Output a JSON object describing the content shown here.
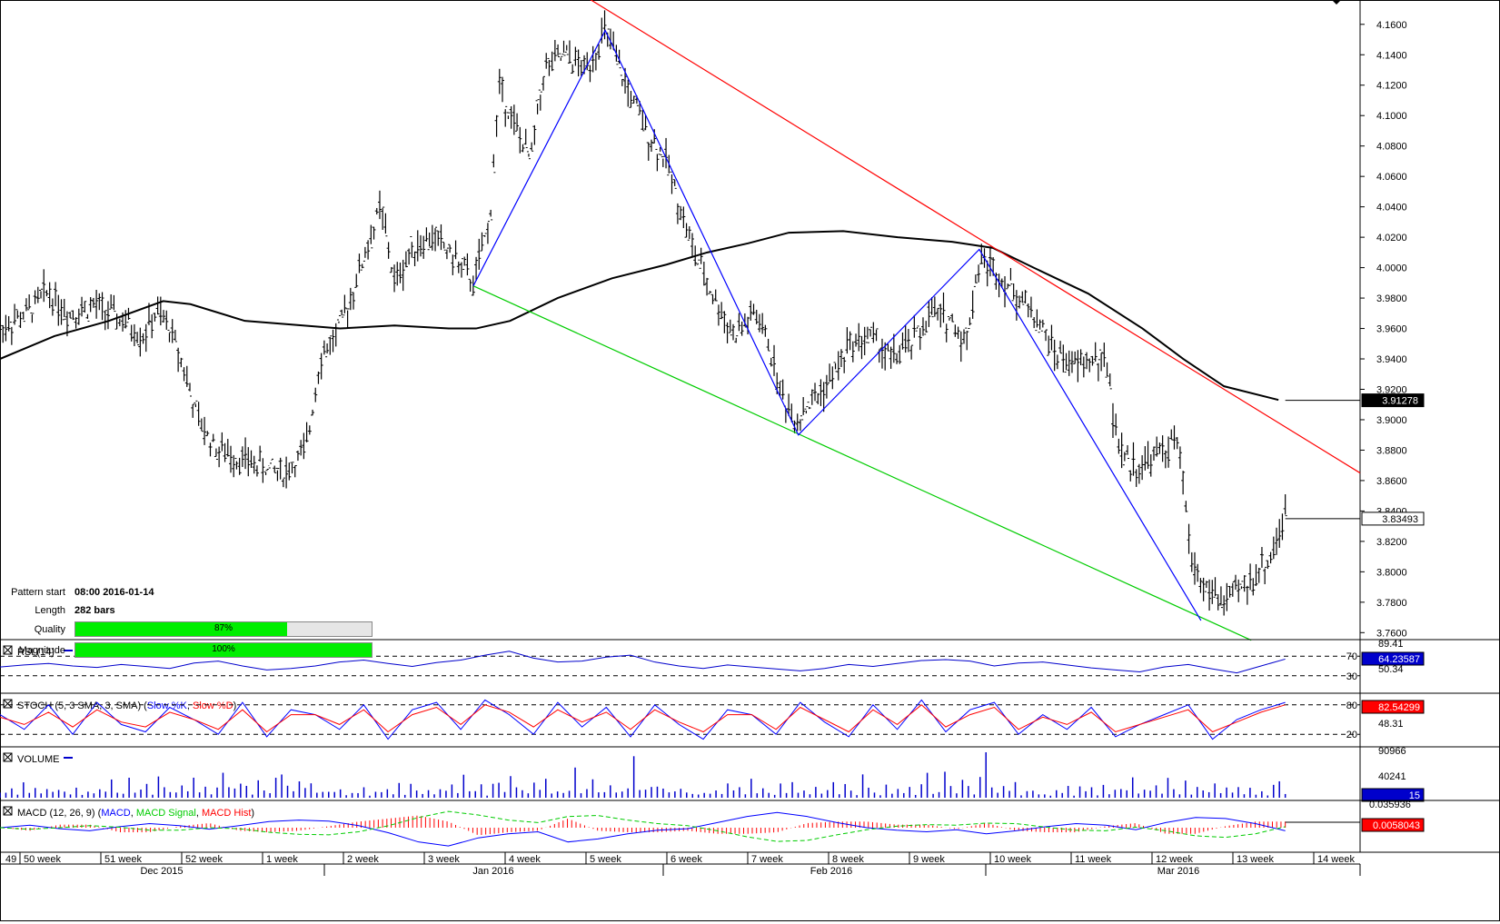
{
  "pattern_info": {
    "start_label": "Pattern start",
    "start_value": "08:00 2016-01-14",
    "length_label": "Length",
    "length_value": "282 bars",
    "quality_label": "Quality",
    "quality_pct": 87,
    "quality_text": "87%",
    "magnitude_label": "Magnitude",
    "magnitude_pct": 100,
    "magnitude_text": "100%"
  },
  "colors": {
    "resistance": "#ff0000",
    "support": "#00cc00",
    "zigzag": "#0000ff",
    "moving_average": "#000000",
    "rsi": "#0000cc",
    "stoch_k": "#0000ff",
    "stoch_d": "#ff0000",
    "volume": "#0000cc",
    "macd": "#0000ff",
    "macd_signal": "#00cc00",
    "macd_hist": "#ff0000",
    "price_bars": "#000000"
  },
  "chart_data": {
    "type": "line",
    "instrument_series": "OHLC price bars",
    "x_weeks": [
      "49",
      "50 week",
      "51 week",
      "52 week",
      "1 week",
      "2 week",
      "3 week",
      "4 week",
      "5 week",
      "6 week",
      "7 week",
      "8 week",
      "9 week",
      "10 week",
      "11 week",
      "12 week",
      "13 week",
      "14 week"
    ],
    "x_months": [
      "Dec 2015",
      "Jan 2016",
      "Feb 2016",
      "Mar 2016"
    ],
    "y_ticks": [
      "4.1600",
      "4.1400",
      "4.1200",
      "4.1000",
      "4.0800",
      "4.0600",
      "4.0400",
      "4.0200",
      "4.0000",
      "3.9800",
      "3.9600",
      "3.9400",
      "3.9200",
      "3.9000",
      "3.8800",
      "3.8600",
      "3.8400",
      "3.8200",
      "3.8000",
      "3.7800",
      "3.7600"
    ],
    "ylim": [
      3.756,
      4.176
    ],
    "price_tag_ma": "3.91278",
    "price_tag_last": "3.83493",
    "price_anchors": [
      [
        0,
        3.96
      ],
      [
        0.02,
        3.97
      ],
      [
        0.035,
        3.985
      ],
      [
        0.05,
        3.97
      ],
      [
        0.07,
        3.975
      ],
      [
        0.09,
        3.965
      ],
      [
        0.105,
        3.955
      ],
      [
        0.115,
        3.97
      ],
      [
        0.125,
        3.96
      ],
      [
        0.135,
        3.935
      ],
      [
        0.145,
        3.9
      ],
      [
        0.16,
        3.88
      ],
      [
        0.175,
        3.875
      ],
      [
        0.19,
        3.87
      ],
      [
        0.21,
        3.865
      ],
      [
        0.225,
        3.88
      ],
      [
        0.235,
        3.94
      ],
      [
        0.25,
        3.96
      ],
      [
        0.265,
        4.0
      ],
      [
        0.28,
        4.04
      ],
      [
        0.29,
        3.99
      ],
      [
        0.305,
        4.015
      ],
      [
        0.32,
        4.02
      ],
      [
        0.335,
        4.005
      ],
      [
        0.348,
        3.99
      ],
      [
        0.36,
        4.03
      ],
      [
        0.367,
        4.12
      ],
      [
        0.38,
        4.09
      ],
      [
        0.39,
        4.07
      ],
      [
        0.4,
        4.13
      ],
      [
        0.415,
        4.14
      ],
      [
        0.43,
        4.13
      ],
      [
        0.445,
        4.155
      ],
      [
        0.46,
        4.12
      ],
      [
        0.475,
        4.09
      ],
      [
        0.49,
        4.07
      ],
      [
        0.51,
        4.01
      ],
      [
        0.525,
        3.98
      ],
      [
        0.54,
        3.955
      ],
      [
        0.555,
        3.97
      ],
      [
        0.565,
        3.95
      ],
      [
        0.575,
        3.915
      ],
      [
        0.585,
        3.9
      ],
      [
        0.595,
        3.91
      ],
      [
        0.61,
        3.925
      ],
      [
        0.625,
        3.95
      ],
      [
        0.64,
        3.955
      ],
      [
        0.655,
        3.94
      ],
      [
        0.67,
        3.95
      ],
      [
        0.685,
        3.97
      ],
      [
        0.7,
        3.965
      ],
      [
        0.71,
        3.95
      ],
      [
        0.72,
        4.005
      ],
      [
        0.73,
        4.0
      ],
      [
        0.745,
        3.985
      ],
      [
        0.76,
        3.97
      ],
      [
        0.775,
        3.945
      ],
      [
        0.79,
        3.935
      ],
      [
        0.805,
        3.94
      ],
      [
        0.815,
        3.935
      ],
      [
        0.82,
        3.89
      ],
      [
        0.83,
        3.87
      ],
      [
        0.84,
        3.87
      ],
      [
        0.855,
        3.88
      ],
      [
        0.865,
        3.885
      ],
      [
        0.87,
        3.86
      ],
      [
        0.875,
        3.81
      ],
      [
        0.885,
        3.79
      ],
      [
        0.9,
        3.78
      ],
      [
        0.915,
        3.79
      ],
      [
        0.925,
        3.8
      ],
      [
        0.935,
        3.81
      ],
      [
        0.94,
        3.825
      ],
      [
        0.945,
        3.835
      ]
    ],
    "moving_average": {
      "name": "",
      "points": [
        [
          0,
          3.94
        ],
        [
          0.04,
          3.955
        ],
        [
          0.08,
          3.965
        ],
        [
          0.12,
          3.978
        ],
        [
          0.14,
          3.976
        ],
        [
          0.18,
          3.965
        ],
        [
          0.25,
          3.96
        ],
        [
          0.29,
          3.962
        ],
        [
          0.33,
          3.96
        ],
        [
          0.35,
          3.96
        ],
        [
          0.375,
          3.965
        ],
        [
          0.41,
          3.98
        ],
        [
          0.45,
          3.993
        ],
        [
          0.49,
          4.002
        ],
        [
          0.52,
          4.01
        ],
        [
          0.55,
          4.016
        ],
        [
          0.58,
          4.023
        ],
        [
          0.62,
          4.024
        ],
        [
          0.66,
          4.02
        ],
        [
          0.7,
          4.017
        ],
        [
          0.73,
          4.013
        ],
        [
          0.76,
          4.0
        ],
        [
          0.8,
          3.983
        ],
        [
          0.84,
          3.96
        ],
        [
          0.87,
          3.94
        ],
        [
          0.9,
          3.922
        ],
        [
          0.94,
          3.913
        ]
      ]
    },
    "zigzag": [
      [
        0.348,
        3.988
      ],
      [
        0.445,
        4.156
      ],
      [
        0.587,
        3.89
      ],
      [
        0.72,
        4.012
      ],
      [
        0.883,
        3.768
      ]
    ],
    "resistance_line": [
      [
        0.4,
        4.195
      ],
      [
        1.0,
        3.865
      ]
    ],
    "support_line": [
      [
        0.348,
        3.988
      ],
      [
        0.92,
        3.755
      ]
    ],
    "indicators": {
      "rsi": {
        "label": "RSI (14)",
        "levels": [
          70,
          30
        ],
        "ylim": [
          0,
          100
        ],
        "scale_labels": [
          "89.41",
          "50.34"
        ],
        "last_value": "64.23587",
        "values": [
          48,
          52,
          55,
          50,
          47,
          53,
          49,
          45,
          56,
          60,
          50,
          42,
          45,
          50,
          58,
          62,
          55,
          49,
          57,
          62,
          72,
          80,
          66,
          58,
          60,
          68,
          72,
          58,
          50,
          45,
          52,
          48,
          44,
          40,
          45,
          53,
          49,
          55,
          61,
          63,
          60,
          50,
          56,
          58,
          52,
          46,
          42,
          38,
          48,
          53,
          44,
          36,
          50,
          64
        ]
      },
      "stoch": {
        "label": "STOCH (5, 3 SMA, 3, SMA)",
        "k_name": "Slow %K",
        "d_name": "Slow %D",
        "levels": [
          80,
          20
        ],
        "ylim": [
          0,
          100
        ],
        "scale_labels": [
          "48.31"
        ],
        "last_value": "82.54299",
        "k": [
          60,
          30,
          80,
          20,
          85,
          40,
          25,
          75,
          50,
          20,
          85,
          15,
          70,
          60,
          30,
          80,
          10,
          70,
          85,
          30,
          90,
          60,
          20,
          85,
          35,
          75,
          15,
          80,
          40,
          10,
          70,
          60,
          20,
          85,
          45,
          15,
          80,
          30,
          90,
          25,
          70,
          85,
          20,
          60,
          30,
          75,
          15,
          40,
          60,
          80,
          10,
          50,
          70,
          85
        ],
        "d": [
          55,
          40,
          65,
          35,
          70,
          45,
          35,
          65,
          50,
          30,
          70,
          25,
          60,
          60,
          40,
          70,
          25,
          60,
          75,
          40,
          80,
          65,
          35,
          70,
          45,
          65,
          30,
          70,
          45,
          25,
          60,
          60,
          30,
          75,
          50,
          25,
          70,
          40,
          80,
          35,
          60,
          75,
          30,
          55,
          40,
          65,
          25,
          40,
          55,
          70,
          25,
          45,
          65,
          80
        ]
      },
      "volume": {
        "label": "VOLUME",
        "scale_labels": [
          "90966",
          "40241"
        ],
        "last_value": "15",
        "values": [
          18,
          12,
          25,
          10,
          30,
          15,
          22,
          8,
          35,
          12,
          28,
          20,
          14,
          40,
          10,
          32,
          18,
          26,
          12,
          45,
          22,
          16,
          38,
          10,
          28,
          35,
          14,
          50,
          20,
          24,
          12,
          36,
          18,
          42,
          15,
          30,
          10,
          28,
          60,
          20,
          18,
          48,
          25,
          14,
          34,
          22,
          12,
          40,
          95,
          30,
          16,
          44,
          22,
          38,
          10,
          20,
          28,
          14,
          18,
          6
        ]
      },
      "macd": {
        "label": "MACD (12, 26, 9)",
        "names": [
          "MACD",
          "MACD Signal",
          "MACD Hist"
        ],
        "scale_labels": [
          "0.035936"
        ],
        "last_value": "0.0058043",
        "macd": [
          0,
          -0.005,
          0.002,
          0.006,
          -0.002,
          -0.008,
          -0.004,
          0.003,
          -0.004,
          -0.012,
          -0.015,
          -0.013,
          -0.004,
          0.01,
          0.028,
          0.036,
          0.02,
          0.012,
          0.008,
          0.028,
          0.022,
          0.012,
          0.005,
          0.002,
          -0.01,
          -0.022,
          -0.03,
          -0.022,
          -0.01,
          0.0,
          0.005,
          0.008,
          0.004,
          0.012,
          0.006,
          -0.002,
          -0.008,
          -0.005,
          0.004,
          -0.01,
          -0.02,
          -0.018,
          -0.008,
          0.006
        ],
        "signal": [
          0,
          -0.003,
          0.0,
          0.004,
          0.001,
          -0.005,
          -0.005,
          0.0,
          -0.002,
          -0.009,
          -0.013,
          -0.014,
          -0.008,
          0.004,
          0.02,
          0.032,
          0.025,
          0.015,
          0.01,
          0.022,
          0.024,
          0.015,
          0.008,
          0.004,
          -0.006,
          -0.018,
          -0.027,
          -0.025,
          -0.014,
          -0.004,
          0.003,
          0.006,
          0.005,
          0.009,
          0.008,
          0.001,
          -0.005,
          -0.006,
          0.001,
          -0.006,
          -0.016,
          -0.019,
          -0.012,
          0.002
        ]
      }
    }
  }
}
